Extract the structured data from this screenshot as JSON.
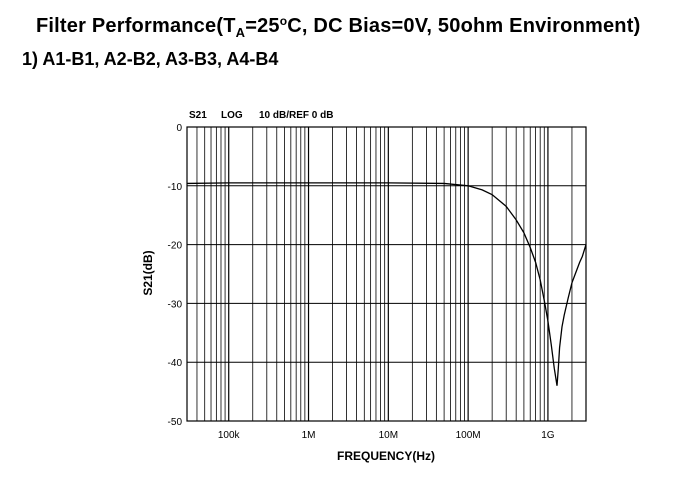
{
  "title": {
    "prefix": "Filter Performance(T",
    "subscript": "A",
    "mid1": "=25",
    "degree": "o",
    "rest": "C, DC Bias=0V, 50ohm Environment)"
  },
  "subtitle": "1) A1-B1, A2-B2, A3-B3, A4-B4",
  "chart_data": {
    "type": "line",
    "header": {
      "param": "S21",
      "format": "LOG",
      "scale": "10 dB/REF 0 dB"
    },
    "xlabel": "FREQUENCY(Hz)",
    "ylabel": "S21(dB)",
    "xscale": "log",
    "xlim": [
      30000,
      3000000000
    ],
    "ylim": [
      -50,
      0
    ],
    "x_ticks": [
      {
        "value": 100000,
        "label": "100k"
      },
      {
        "value": 1000000,
        "label": "1M"
      },
      {
        "value": 10000000,
        "label": "10M"
      },
      {
        "value": 100000000,
        "label": "100M"
      },
      {
        "value": 1000000000,
        "label": "1G"
      }
    ],
    "y_ticks": [
      {
        "value": 0,
        "label": "0"
      },
      {
        "value": -10,
        "label": "-10"
      },
      {
        "value": -20,
        "label": "-20"
      },
      {
        "value": -30,
        "label": "-30"
      },
      {
        "value": -40,
        "label": "-40"
      },
      {
        "value": -50,
        "label": "-50"
      }
    ],
    "grid": true,
    "series": [
      {
        "x": [
          30000,
          100000,
          1000000,
          10000000,
          50000000,
          100000000,
          150000000,
          200000000,
          300000000,
          400000000,
          500000000,
          600000000,
          700000000,
          800000000,
          900000000,
          1000000000,
          1100000000,
          1200000000,
          1300000000,
          1350000000,
          1400000000,
          1500000000,
          1600000000,
          1800000000,
          2000000000,
          2200000000,
          2500000000,
          2700000000,
          3000000000
        ],
        "y": [
          -9.6,
          -9.5,
          -9.5,
          -9.5,
          -9.6,
          -10.0,
          -10.7,
          -11.5,
          -13.5,
          -15.8,
          -18.0,
          -20.5,
          -23.0,
          -26.0,
          -29.5,
          -33.0,
          -37.0,
          -41.0,
          -44.0,
          -41.0,
          -37.5,
          -34.0,
          -32.0,
          -29.0,
          -26.5,
          -25.0,
          -23.0,
          -22.0,
          -20.0
        ]
      }
    ]
  }
}
